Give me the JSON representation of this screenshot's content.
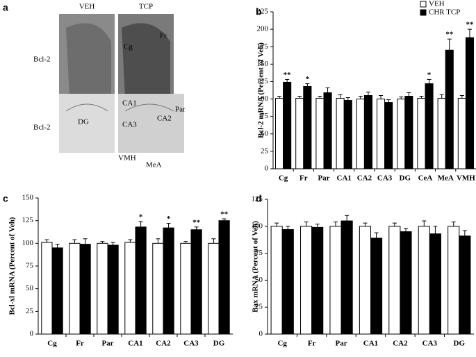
{
  "panel_a": {
    "label": "a",
    "columns": [
      "VEH",
      "TCP"
    ],
    "rows": [
      "Bcl-2",
      "Bcl-2"
    ],
    "annotations": [
      "Cg",
      "Fr",
      "DG",
      "CA1",
      "Par",
      "CA2",
      "CA3",
      "VMH",
      "MeA"
    ]
  },
  "chart_data": [
    {
      "type": "bar",
      "panel": "b",
      "ylabel": "Bcl-2 mRNA (Percent of Veh)",
      "categories": [
        "Cg",
        "Fr",
        "Par",
        "CA1",
        "CA2",
        "CA3",
        "DG",
        "CeA",
        "MeA",
        "VMH"
      ],
      "series": [
        {
          "name": "VEH",
          "color": "#ffffff",
          "values": [
            101,
            101,
            101,
            101,
            100,
            100,
            100,
            101,
            101,
            101
          ],
          "errors": [
            3,
            3,
            3,
            5,
            4,
            5,
            3,
            3,
            5,
            4
          ]
        },
        {
          "name": "CHR TCP",
          "color": "#000000",
          "values": [
            124,
            118,
            109,
            98,
            105,
            95,
            104,
            122,
            170,
            188
          ],
          "errors": [
            4,
            4,
            7,
            4,
            5,
            4,
            5,
            6,
            16,
            12
          ],
          "significance": [
            "**",
            "*",
            null,
            null,
            null,
            null,
            null,
            "*",
            "**",
            "**"
          ]
        }
      ],
      "ylim": [
        0,
        225
      ],
      "yticks": [
        0,
        25,
        50,
        75,
        100,
        125,
        150,
        175,
        200,
        225
      ],
      "legend": "upper right"
    },
    {
      "type": "bar",
      "panel": "c",
      "ylabel": "Bcl-xl mRNA (Percent of Veh)",
      "categories": [
        "Cg",
        "Fr",
        "Par",
        "CA1",
        "CA2",
        "CA3",
        "DG"
      ],
      "series": [
        {
          "name": "VEH",
          "color": "#ffffff",
          "values": [
            101,
            100,
            100,
            101,
            100,
            100,
            100
          ],
          "errors": [
            3,
            4,
            2,
            3,
            5,
            2,
            5
          ]
        },
        {
          "name": "CHR TCP",
          "color": "#000000",
          "values": [
            95,
            99,
            98,
            118,
            117,
            115,
            125
          ],
          "errors": [
            4,
            6,
            3,
            6,
            5,
            3,
            2
          ],
          "significance": [
            null,
            null,
            null,
            "*",
            "*",
            "**",
            "**"
          ]
        }
      ],
      "ylim": [
        0,
        150
      ],
      "yticks": [
        0,
        25,
        50,
        75,
        100,
        125,
        150
      ]
    },
    {
      "type": "bar",
      "panel": "d",
      "ylabel": "Bax mRNA (Percent of Veh)",
      "categories": [
        "Cg",
        "Fr",
        "Par",
        "CA1",
        "CA2",
        "CA3",
        "DG"
      ],
      "series": [
        {
          "name": "VEH",
          "color": "#ffffff",
          "values": [
            100,
            100,
            100,
            100,
            100,
            100,
            100
          ],
          "errors": [
            3,
            4,
            4,
            3,
            3,
            5,
            4
          ]
        },
        {
          "name": "CHR TCP",
          "color": "#000000",
          "values": [
            97,
            99,
            105,
            89,
            95,
            93,
            91
          ],
          "errors": [
            3,
            3,
            5,
            5,
            3,
            7,
            5
          ]
        }
      ],
      "ylim": [
        0,
        125
      ],
      "yticks": [
        0,
        25,
        50,
        75,
        100,
        125
      ]
    }
  ]
}
